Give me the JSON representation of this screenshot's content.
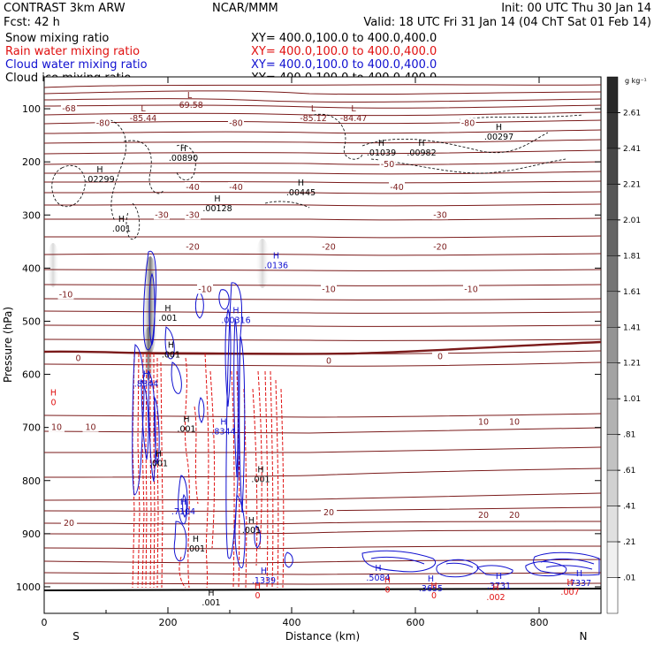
{
  "header": {
    "left_line1": "CONTRAST   3km ARW",
    "center_line1": "NCAR/MMM",
    "right_line1": "Init: 00 UTC Thu 30 Jan 14",
    "left_line2": "Fcst:     42 h",
    "right_line2": "Valid: 18 UTC Fri 31 Jan 14 (04 ChT Sat 01 Feb 14)"
  },
  "fields": [
    {
      "name": "Snow mixing ratio",
      "xy": "XY=  400.0,100.0  to  400.0,400.0",
      "color": "#000000"
    },
    {
      "name": "Rain water mixing ratio",
      "xy": "XY=  400.0,100.0  to  400.0,400.0",
      "color": "#e01010"
    },
    {
      "name": "Cloud water mixing ratio",
      "xy": "XY=  400.0,100.0  to  400.0,400.0",
      "color": "#1010d0"
    },
    {
      "name": "Cloud ice mixing ratio",
      "xy": "XY=  400.0,100.0  to  400.0,400.0",
      "color": "#000000"
    }
  ],
  "chart_data": {
    "type": "heatmap",
    "xlabel": "Distance (km)",
    "ylabel": "Pressure (hPa)",
    "xlim": [
      0,
      900
    ],
    "ylim": [
      1050,
      40
    ],
    "x_ticks": [
      0,
      200,
      400,
      600,
      800
    ],
    "y_ticks": [
      100,
      200,
      300,
      400,
      500,
      600,
      700,
      800,
      900,
      1000
    ],
    "x_end_labels": {
      "left": "S",
      "right": "N"
    },
    "colorbar": {
      "unit": "g kg⁻¹",
      "levels": [
        "2.61",
        "2.41",
        "2.21",
        "2.01",
        "1.81",
        "1.61",
        "1.41",
        "1.21",
        "1.01",
        ".81",
        ".61",
        ".41",
        ".21",
        ".01"
      ]
    },
    "temperature_contour_labels": [
      {
        "text": "-68",
        "x": 40,
        "p": 100
      },
      {
        "text": "-80",
        "x": 95,
        "p": 127
      },
      {
        "text": "-80",
        "x": 310,
        "p": 127
      },
      {
        "text": "-80",
        "x": 685,
        "p": 127
      },
      {
        "text": "-50",
        "x": 555,
        "p": 205
      },
      {
        "text": "-40",
        "x": 240,
        "p": 248
      },
      {
        "text": "-40",
        "x": 310,
        "p": 248
      },
      {
        "text": "-40",
        "x": 570,
        "p": 248
      },
      {
        "text": "-30",
        "x": 190,
        "p": 300
      },
      {
        "text": "-30",
        "x": 240,
        "p": 300
      },
      {
        "text": "-30",
        "x": 640,
        "p": 300
      },
      {
        "text": "-20",
        "x": 240,
        "p": 360
      },
      {
        "text": "-20",
        "x": 460,
        "p": 360
      },
      {
        "text": "-20",
        "x": 640,
        "p": 360
      },
      {
        "text": "-10",
        "x": 35,
        "p": 450
      },
      {
        "text": "-10",
        "x": 260,
        "p": 440
      },
      {
        "text": "-10",
        "x": 460,
        "p": 440
      },
      {
        "text": "-10",
        "x": 690,
        "p": 440
      },
      {
        "text": "0",
        "x": 55,
        "p": 570
      },
      {
        "text": "0",
        "x": 460,
        "p": 575
      },
      {
        "text": "0",
        "x": 640,
        "p": 567
      },
      {
        "text": "10",
        "x": 20,
        "p": 700
      },
      {
        "text": "10",
        "x": 75,
        "p": 700
      },
      {
        "text": "10",
        "x": 710,
        "p": 690
      },
      {
        "text": "10",
        "x": 760,
        "p": 690
      },
      {
        "text": "20",
        "x": 40,
        "p": 880
      },
      {
        "text": "20",
        "x": 460,
        "p": 860
      },
      {
        "text": "20",
        "x": 710,
        "p": 865
      },
      {
        "text": "20",
        "x": 760,
        "p": 865
      }
    ],
    "extrema_labels": [
      {
        "type": "L",
        "value": "-69.58",
        "x": 235,
        "p": 85
      },
      {
        "type": "L",
        "value": "-85.44",
        "x": 160,
        "p": 110
      },
      {
        "type": "L",
        "value": "-85.12",
        "x": 435,
        "p": 110
      },
      {
        "type": "L",
        "value": "-84.47",
        "x": 500,
        "p": 110
      },
      {
        "type": "H",
        "value": ".00297",
        "x": 735,
        "p": 145
      },
      {
        "type": "H",
        "value": ".00890",
        "x": 225,
        "p": 185
      },
      {
        "type": "H",
        "value": ".01039",
        "x": 545,
        "p": 175
      },
      {
        "type": "H",
        "value": ".00982",
        "x": 610,
        "p": 175
      },
      {
        "type": "H",
        "value": ".02299",
        "x": 90,
        "p": 225
      },
      {
        "type": "H",
        "value": ".00445",
        "x": 415,
        "p": 250
      },
      {
        "type": "H",
        "value": ".00128",
        "x": 280,
        "p": 280
      },
      {
        "type": "H",
        "value": ".001",
        "x": 125,
        "p": 318
      },
      {
        "type": "H",
        "value": ".0136",
        "x": 375,
        "p": 387
      },
      {
        "type": "H",
        "value": ".001",
        "x": 200,
        "p": 486
      },
      {
        "type": "H",
        "value": ".00316",
        "x": 310,
        "p": 490
      },
      {
        "type": "H",
        "value": ".001",
        "x": 205,
        "p": 555
      },
      {
        "type": "H",
        "value": ".8344",
        "x": 165,
        "p": 610
      },
      {
        "type": "H",
        "value": "0",
        "x": 15,
        "p": 645
      },
      {
        "type": "H",
        "value": ".001",
        "x": 230,
        "p": 695
      },
      {
        "type": "H",
        "value": ".8344",
        "x": 290,
        "p": 700
      },
      {
        "type": "H",
        "value": ".001",
        "x": 185,
        "p": 760
      },
      {
        "type": "H",
        "value": ".001",
        "x": 350,
        "p": 790
      },
      {
        "type": "H",
        "value": ".7104",
        "x": 225,
        "p": 850
      },
      {
        "type": "H",
        "value": ".001",
        "x": 335,
        "p": 885
      },
      {
        "type": "H",
        "value": ".001",
        "x": 245,
        "p": 920
      },
      {
        "type": "H",
        "value": ".1339",
        "x": 355,
        "p": 980
      },
      {
        "type": "H",
        "value": ".5084",
        "x": 540,
        "p": 975
      },
      {
        "type": "H",
        "value": ".3655",
        "x": 625,
        "p": 995
      },
      {
        "type": "H",
        "value": ".3731",
        "x": 735,
        "p": 990
      },
      {
        "type": "H",
        "value": ".002",
        "x": 730,
        "p": 1012
      },
      {
        "type": "H",
        "value": ".7337",
        "x": 865,
        "p": 985
      },
      {
        "type": "H",
        "value": ".007",
        "x": 850,
        "p": 1002
      },
      {
        "type": "H",
        "value": "0",
        "x": 555,
        "p": 998
      },
      {
        "type": "H",
        "value": "0",
        "x": 630,
        "p": 1008
      },
      {
        "type": "H",
        "value": "0",
        "x": 345,
        "p": 1008
      },
      {
        "type": "H",
        "value": ".001",
        "x": 270,
        "p": 1022
      }
    ]
  }
}
